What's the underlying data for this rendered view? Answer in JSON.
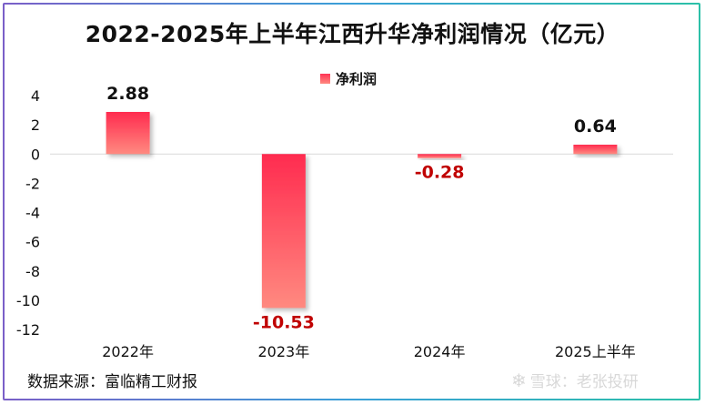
{
  "chart_data": {
    "type": "bar",
    "title": "2022-2025年上半年江西升华净利润情况（亿元）",
    "categories": [
      "2022年",
      "2023年",
      "2024年",
      "2025上半年"
    ],
    "series": [
      {
        "name": "净利润",
        "values": [
          2.88,
          -10.53,
          -0.28,
          0.64
        ]
      }
    ],
    "data_labels": [
      "2.88",
      "-10.53",
      "-0.28",
      "0.64"
    ],
    "ylim": [
      -12,
      4
    ],
    "yticks": [
      4,
      2,
      0,
      -2,
      -4,
      -6,
      -8,
      -10,
      -12
    ],
    "grid": false,
    "legend_position": "top-center",
    "colors": {
      "bar_top": "#ff2b4f",
      "bar_bottom": "#ff8a80",
      "positive_label": "#111111",
      "negative_label": "#c00000"
    }
  },
  "footer": {
    "source": "数据来源：富临精工财报",
    "watermark": "雪球：老张投研",
    "watermark_icon": "snowball-icon"
  }
}
